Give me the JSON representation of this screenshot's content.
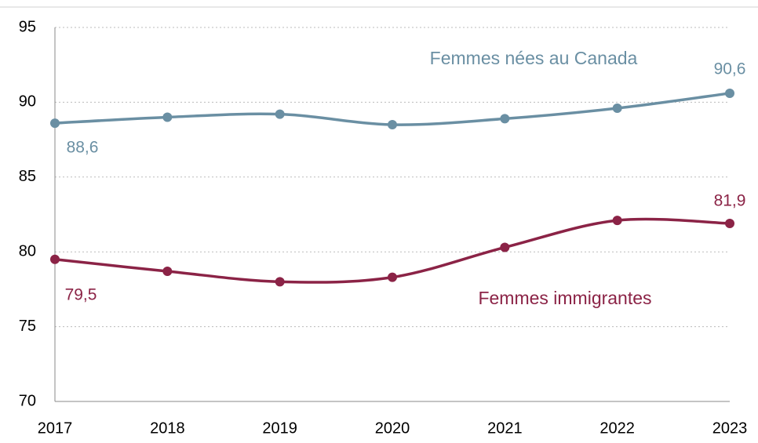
{
  "chart_data": {
    "type": "line",
    "categories": [
      "2017",
      "2018",
      "2019",
      "2020",
      "2021",
      "2022",
      "2023"
    ],
    "series": [
      {
        "name": "Femmes nées au Canada",
        "color": "#6a8fa3",
        "values": [
          88.6,
          89.0,
          89.2,
          88.5,
          88.9,
          89.6,
          90.6
        ],
        "value_labels": [
          "88,6",
          null,
          null,
          null,
          null,
          null,
          "90,6"
        ]
      },
      {
        "name": "Femmes immigrantes",
        "color": "#8b2346",
        "values": [
          79.5,
          78.7,
          78.0,
          78.3,
          80.3,
          82.1,
          81.9
        ],
        "value_labels": [
          "79,5",
          null,
          null,
          null,
          null,
          null,
          "81,9"
        ]
      }
    ],
    "ylim": [
      70,
      95
    ],
    "yticks": [
      70,
      75,
      80,
      85,
      90,
      95
    ],
    "grid": true
  }
}
